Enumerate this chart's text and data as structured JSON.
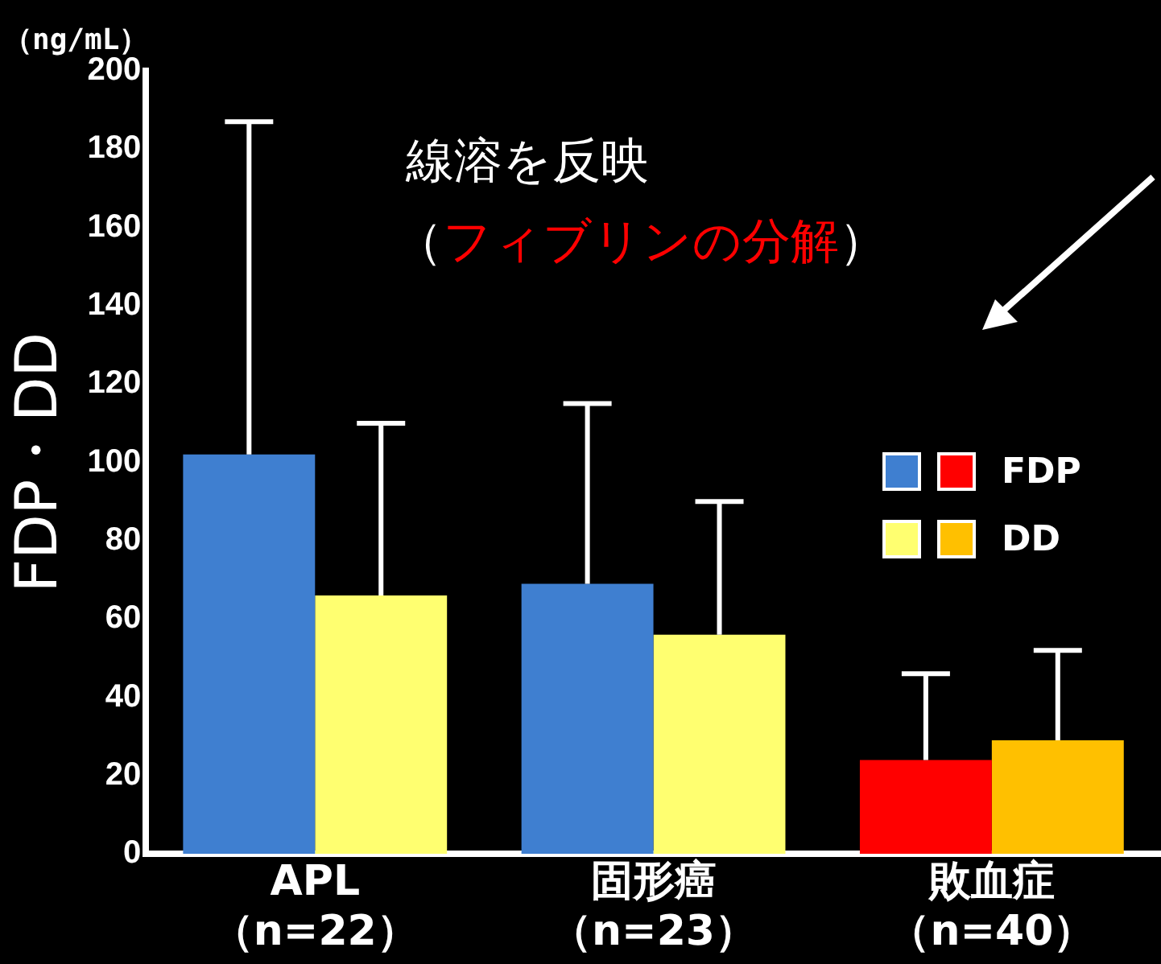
{
  "chart_data": {
    "type": "bar",
    "ylabel": "FDP・DD",
    "categories": [
      "APL （n=22）",
      "固形癌（n=23）",
      "敗血症（n=40）"
    ],
    "series": [
      {
        "name": "FDP",
        "colors": [
          "#3f7fd0",
          "#3f7fd0",
          "#ff0000"
        ],
        "values": [
          102,
          69,
          24
        ],
        "errors": [
          [
            102,
            187
          ],
          [
            69,
            115
          ],
          [
            24,
            46
          ]
        ]
      },
      {
        "name": "DD",
        "colors": [
          "#ffff70",
          "#ffff70",
          "#ffc000"
        ],
        "values": [
          66,
          56,
          29
        ],
        "errors": [
          [
            66,
            110
          ],
          [
            56,
            90
          ],
          [
            29,
            52
          ]
        ]
      }
    ],
    "ylim": [
      0,
      200
    ],
    "yticks": [
      0,
      20,
      40,
      60,
      80,
      100,
      120,
      140,
      160,
      180,
      200
    ],
    "grid": false,
    "legend": "right",
    "annotations": [
      "（ng/mL）",
      "線溶を反映",
      "（フィブリンの分解）"
    ]
  }
}
